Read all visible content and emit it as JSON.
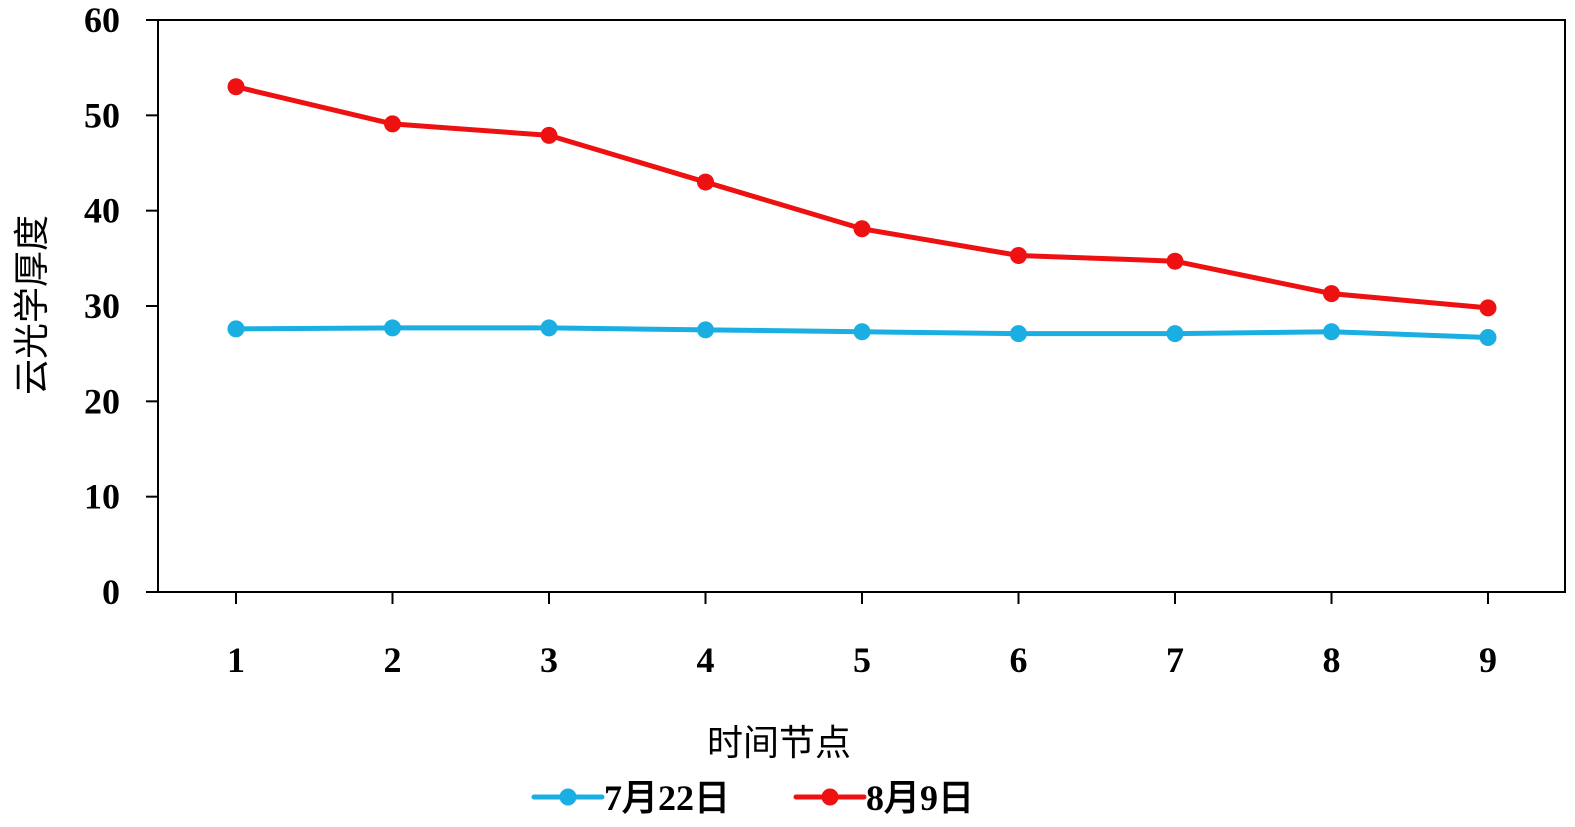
{
  "chart_data": {
    "type": "line",
    "xlabel": "时间节点",
    "ylabel": "云光学厚度",
    "x": [
      1,
      2,
      3,
      4,
      5,
      6,
      7,
      8,
      9
    ],
    "x_tick_labels": [
      "1",
      "2",
      "3",
      "4",
      "5",
      "6",
      "7",
      "8",
      "9"
    ],
    "ylim": [
      0,
      60
    ],
    "y_ticks": [
      0,
      10,
      20,
      30,
      40,
      50,
      60
    ],
    "y_tick_labels": [
      "0",
      "10",
      "20",
      "30",
      "40",
      "50",
      "60"
    ],
    "grid": false,
    "legend_position": "bottom",
    "series": [
      {
        "name": "7月22日",
        "color": "#1aaee3",
        "values": [
          27.6,
          27.7,
          27.7,
          27.5,
          27.3,
          27.1,
          27.1,
          27.3,
          26.7
        ]
      },
      {
        "name": "8月9日",
        "color": "#ee1111",
        "values": [
          53.0,
          49.1,
          47.9,
          43.0,
          38.1,
          35.3,
          34.7,
          31.3,
          29.8
        ]
      }
    ]
  }
}
